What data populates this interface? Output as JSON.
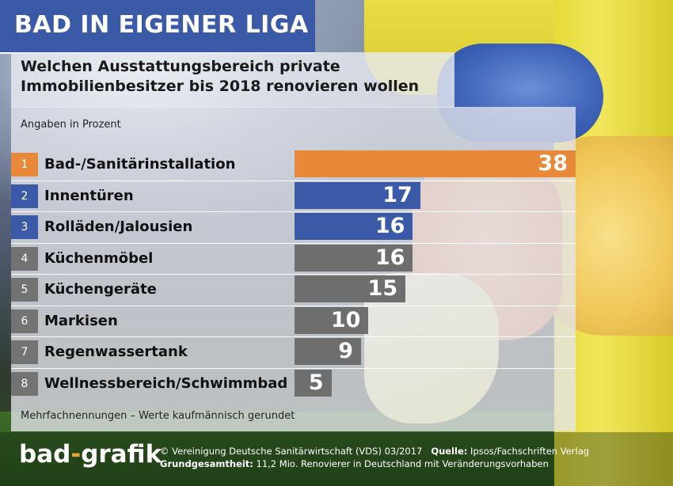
{
  "header": {
    "title": "BAD IN EIGENER LIGA",
    "subtitle_line1": "Welchen Ausstattungsbereich private",
    "subtitle_line2": "Immobilienbesitzer bis 2018 renovieren wollen",
    "unit_note": "Angaben in Prozent"
  },
  "footnote": "Mehrfachnennungen – Werte kaufmännisch gerundet",
  "footer": {
    "logo_part1": "bad",
    "logo_part2": "-",
    "logo_part3": "grafik",
    "copyright": "© Vereinigung Deutsche Sanitärwirtschaft (VDS)  03/2017",
    "source_label": "Quelle:",
    "source_value": "Ipsos/Fachschriften Verlag",
    "base_label": "Grundgesamtheit:",
    "base_value": "11,2 Mio. Renovierer in Deutschland mit Veränderungsvorhaben"
  },
  "colors": {
    "rank1": "#e8893a",
    "rank2_3": "#3a5aa8",
    "rank_rest": "#737373",
    "bar1": "#e8893a",
    "bar2_3": "#3a5aa8",
    "bar_rest": "#6e6e6e"
  },
  "chart_data": {
    "type": "bar",
    "orientation": "horizontal",
    "title": "BAD IN EIGENER LIGA",
    "ranks": [
      "1",
      "2",
      "3",
      "4",
      "5",
      "6",
      "7",
      "8"
    ],
    "categories": [
      "Bad-/Sanitärinstallation",
      "Innentüren",
      "Rolläden/Jalousien",
      "Küchenmöbel",
      "Küchengeräte",
      "Markisen",
      "Regenwassertank",
      "Wellnessbereich/Schwimmbad"
    ],
    "values": [
      38,
      17,
      16,
      16,
      15,
      10,
      9,
      5
    ],
    "value_labels": [
      "38",
      "17",
      "16",
      "16",
      "15",
      "10",
      "9",
      "5"
    ],
    "xlim": [
      0,
      38
    ],
    "grid": false,
    "legend": "none"
  }
}
